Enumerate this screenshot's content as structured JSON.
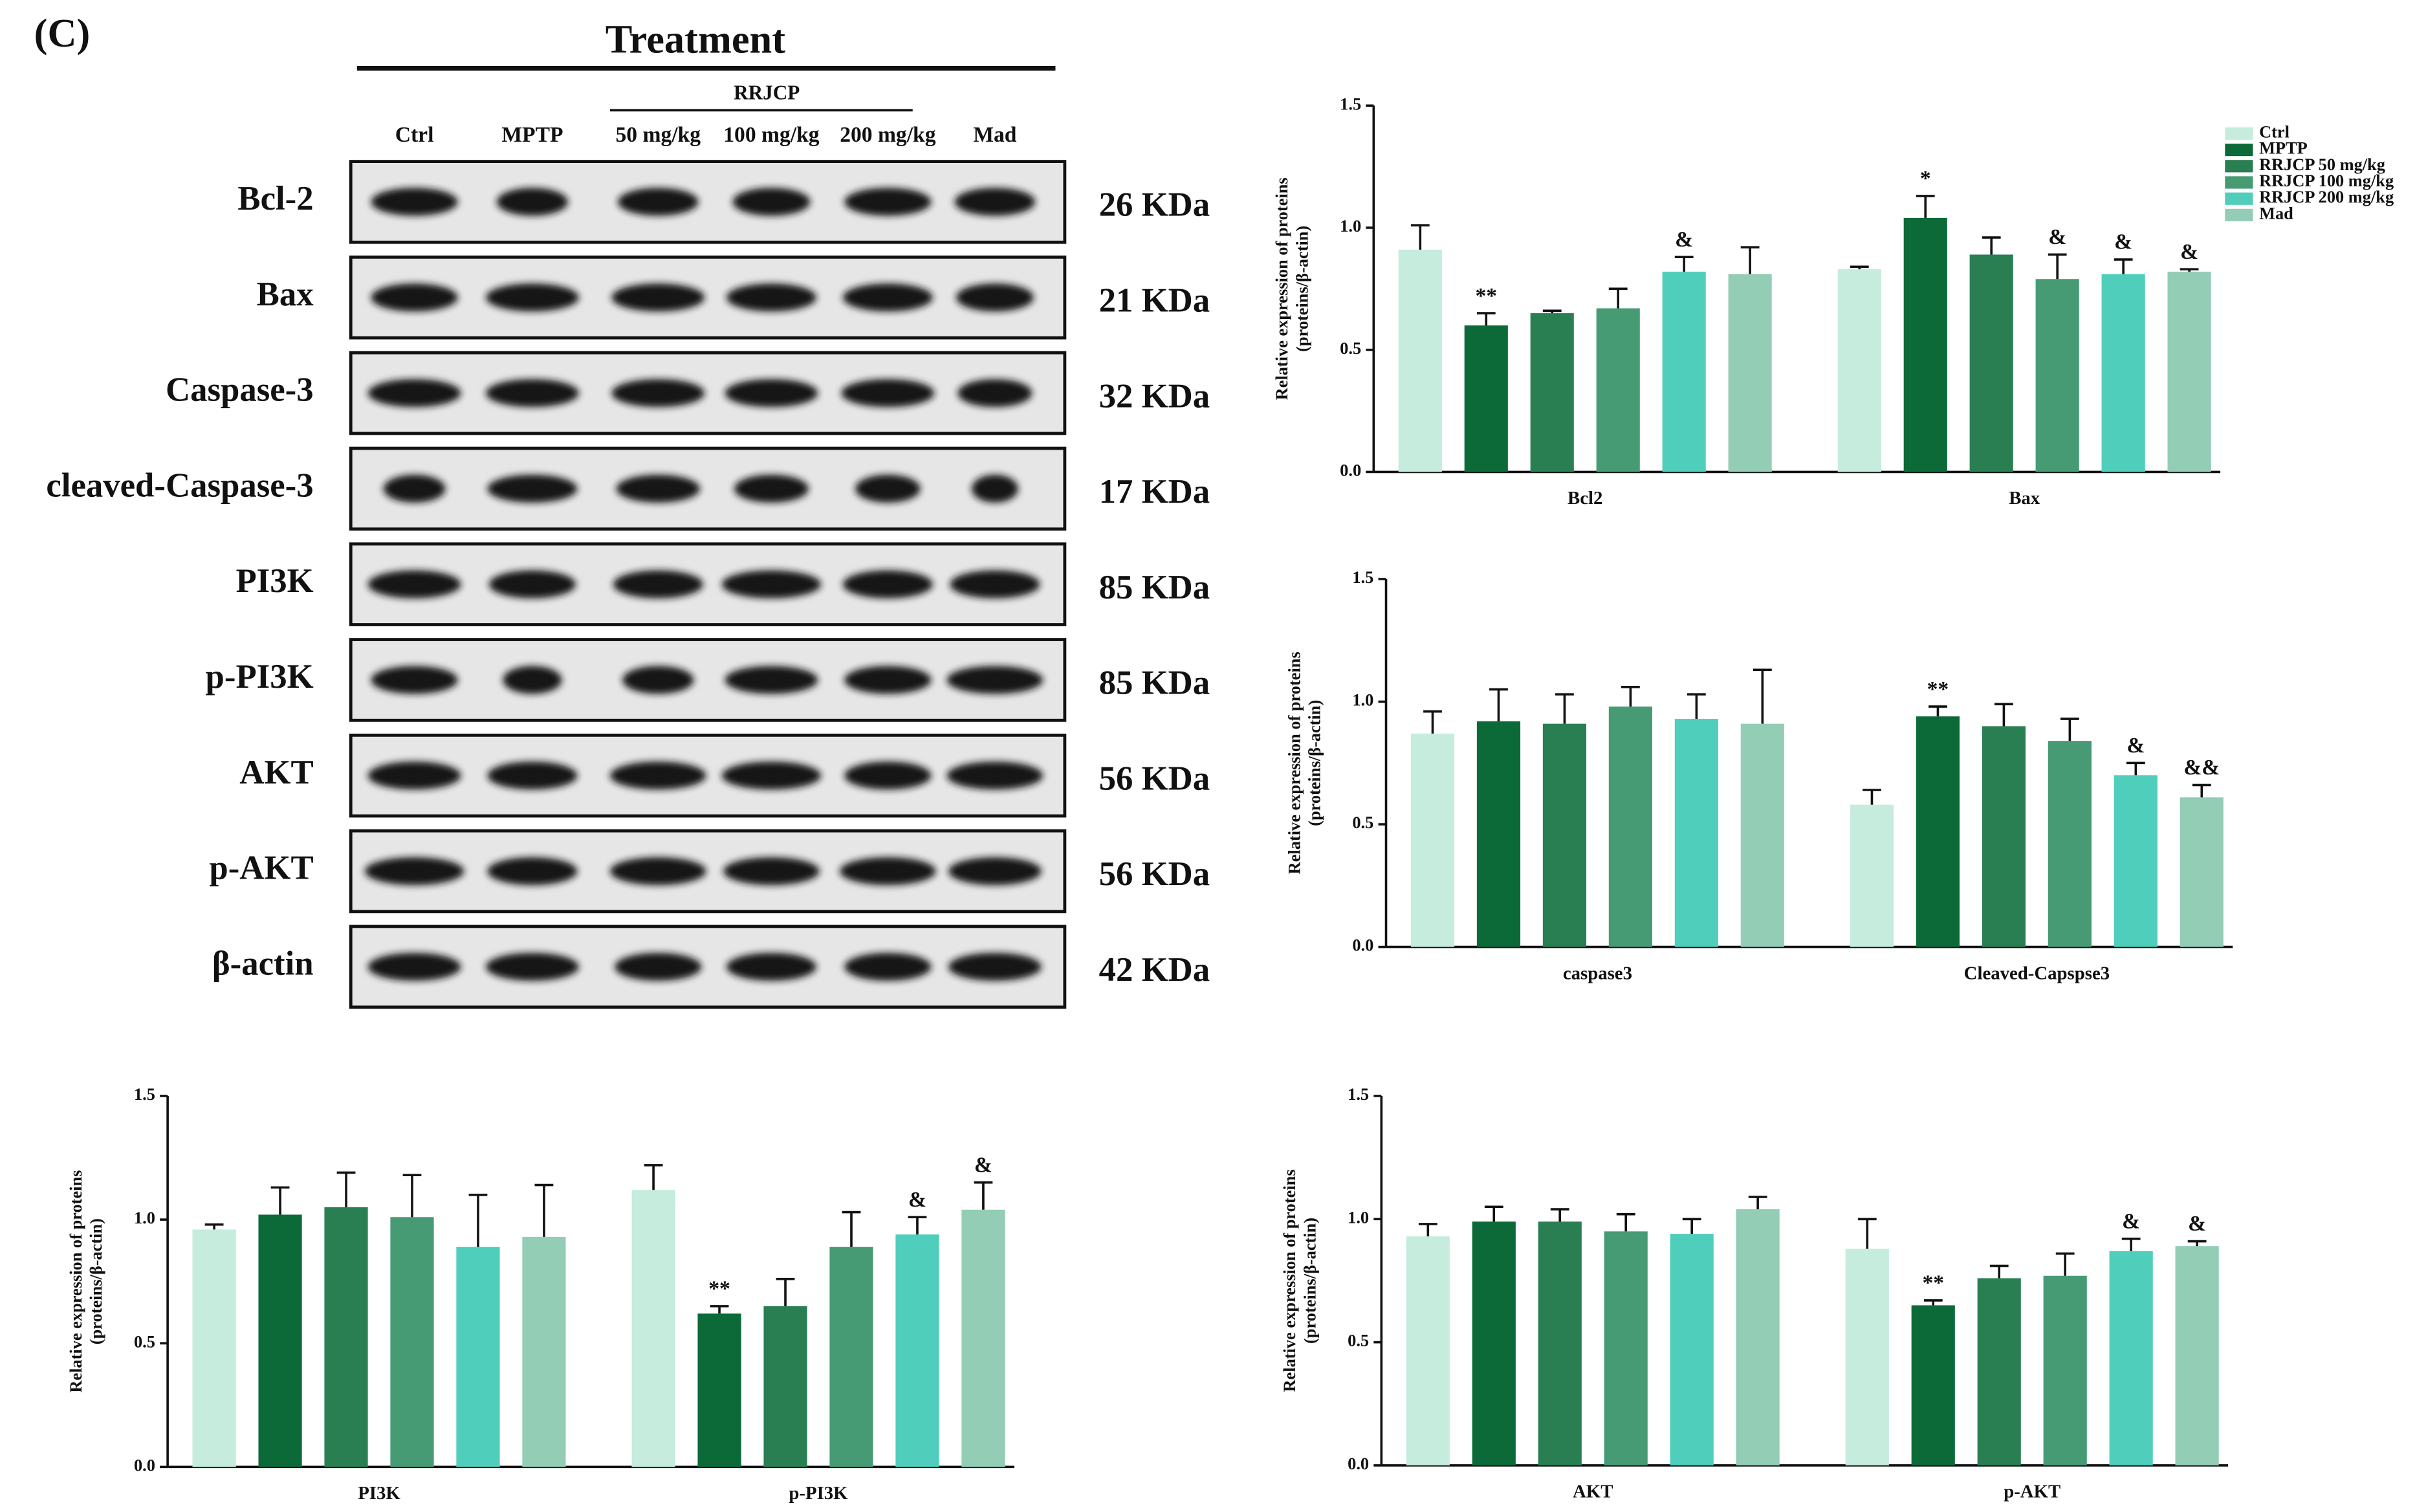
{
  "figure_label": "(C)",
  "blot": {
    "header": "Treatment",
    "group": "RRJCP",
    "lanes": [
      "Ctrl",
      "MPTP",
      "50 mg/kg",
      "100 mg/kg",
      "200 mg/kg",
      "Mad"
    ],
    "rows": [
      {
        "name": "Bcl-2",
        "size": "26 KDa"
      },
      {
        "name": "Bax",
        "size": "21 KDa"
      },
      {
        "name": "Caspase-3",
        "size": "32 KDa"
      },
      {
        "name": "cleaved-Caspase-3",
        "size": "17 KDa"
      },
      {
        "name": "PI3K",
        "size": "85 KDa"
      },
      {
        "name": "p-PI3K",
        "size": "85 KDa"
      },
      {
        "name": "AKT",
        "size": "56 KDa"
      },
      {
        "name": "p-AKT",
        "size": "56 KDa"
      },
      {
        "name": "β-actin",
        "size": "42 KDa"
      }
    ]
  },
  "chart_data": [
    {
      "type": "bar",
      "y_label": [
        "Relative expression of proteins",
        "(proteins/β-actin)"
      ],
      "categories": [
        "Bcl2",
        "Bax"
      ],
      "ylim": [
        0,
        1.5
      ],
      "yticks": [
        {
          "value": 0,
          "label": "0.0"
        },
        0.5,
        {
          "value": 1,
          "label": "1.0"
        },
        1.5
      ],
      "legend": "top-right",
      "series": [
        {
          "name": "Ctrl",
          "color": "#c5ecdd",
          "values": [
            0.91,
            0.83
          ],
          "errors": [
            0.1,
            0.01
          ],
          "annotations": [
            null,
            null
          ]
        },
        {
          "name": "MPTP",
          "color": "#0b6a38",
          "values": [
            0.6,
            1.04
          ],
          "errors": [
            0.05,
            0.09
          ],
          "annotations": [
            "**",
            "*"
          ]
        },
        {
          "name": "RRJCP 50 mg/kg",
          "color": "#2a7f52",
          "values": [
            0.65,
            0.89
          ],
          "errors": [
            0.01,
            0.07
          ],
          "annotations": [
            null,
            null
          ]
        },
        {
          "name": "RRJCP 100 mg/kg",
          "color": "#469b74",
          "values": [
            0.67,
            0.79
          ],
          "errors": [
            0.08,
            0.1
          ],
          "annotations": [
            null,
            "&"
          ]
        },
        {
          "name": "RRJCP 200 mg/kg",
          "color": "#4fcfbb",
          "values": [
            0.82,
            0.81
          ],
          "errors": [
            0.06,
            0.06
          ],
          "annotations": [
            "&",
            "&"
          ]
        },
        {
          "name": "Mad",
          "color": "#93cdb6",
          "values": [
            0.81,
            0.82
          ],
          "errors": [
            0.11,
            0.01
          ],
          "annotations": [
            null,
            "&"
          ]
        }
      ]
    },
    {
      "type": "bar",
      "y_label": [
        "Relative expression of proteins",
        "(proteins/β-actin)"
      ],
      "categories": [
        "caspase3",
        "Cleaved-Capspse3"
      ],
      "ylim": [
        0,
        1.5
      ],
      "yticks": [
        {
          "value": 0,
          "label": "0.0"
        },
        0.5,
        {
          "value": 1,
          "label": "1.0"
        },
        1.5
      ],
      "series": [
        {
          "color": "#c5ecdd",
          "values": [
            0.87,
            0.58
          ],
          "errors": [
            0.09,
            0.06
          ],
          "annotations": [
            null,
            null
          ]
        },
        {
          "color": "#0b6a38",
          "values": [
            0.92,
            0.94
          ],
          "errors": [
            0.13,
            0.04
          ],
          "annotations": [
            null,
            "**"
          ]
        },
        {
          "color": "#2a7f52",
          "values": [
            0.91,
            0.9
          ],
          "errors": [
            0.12,
            0.09
          ],
          "annotations": [
            null,
            null
          ]
        },
        {
          "color": "#469b74",
          "values": [
            0.98,
            0.84
          ],
          "errors": [
            0.08,
            0.09
          ],
          "annotations": [
            null,
            null
          ]
        },
        {
          "color": "#4fcfbb",
          "values": [
            0.93,
            0.7
          ],
          "errors": [
            0.1,
            0.05
          ],
          "annotations": [
            null,
            "&"
          ]
        },
        {
          "color": "#93cdb6",
          "values": [
            0.91,
            0.61
          ],
          "errors": [
            0.22,
            0.05
          ],
          "annotations": [
            null,
            "&&"
          ]
        }
      ]
    },
    {
      "type": "bar",
      "y_label": [
        "Relative expression of proteins",
        "(proteins/β-actin)"
      ],
      "categories": [
        "PI3K",
        "p-PI3K"
      ],
      "ylim": [
        0,
        1.5
      ],
      "yticks": [
        {
          "value": 0,
          "label": "0.0"
        },
        0.5,
        {
          "value": 1,
          "label": "1.0"
        },
        1.5
      ],
      "series": [
        {
          "color": "#c5ecdd",
          "values": [
            0.96,
            1.12
          ],
          "errors": [
            0.02,
            0.1
          ],
          "annotations": [
            null,
            null
          ]
        },
        {
          "color": "#0b6a38",
          "values": [
            1.02,
            0.62
          ],
          "errors": [
            0.11,
            0.03
          ],
          "annotations": [
            null,
            "**"
          ]
        },
        {
          "color": "#2a7f52",
          "values": [
            1.05,
            0.65
          ],
          "errors": [
            0.14,
            0.11
          ],
          "annotations": [
            null,
            null
          ]
        },
        {
          "color": "#469b74",
          "values": [
            1.01,
            0.89
          ],
          "errors": [
            0.17,
            0.14
          ],
          "annotations": [
            null,
            null
          ]
        },
        {
          "color": "#4fcfbb",
          "values": [
            0.89,
            0.94
          ],
          "errors": [
            0.21,
            0.07
          ],
          "annotations": [
            null,
            "&"
          ]
        },
        {
          "color": "#93cdb6",
          "values": [
            0.93,
            1.04
          ],
          "errors": [
            0.21,
            0.11
          ],
          "annotations": [
            null,
            "&"
          ]
        }
      ]
    },
    {
      "type": "bar",
      "y_label": [
        "Relative expression of proteins",
        "(proteins/β-actin)"
      ],
      "categories": [
        "AKT",
        "p-AKT"
      ],
      "ylim": [
        0,
        1.5
      ],
      "yticks": [
        {
          "value": 0,
          "label": "0.0"
        },
        0.5,
        {
          "value": 1,
          "label": "1.0"
        },
        1.5
      ],
      "series": [
        {
          "color": "#c5ecdd",
          "values": [
            0.93,
            0.88
          ],
          "errors": [
            0.05,
            0.12
          ],
          "annotations": [
            null,
            null
          ]
        },
        {
          "color": "#0b6a38",
          "values": [
            0.99,
            0.65
          ],
          "errors": [
            0.06,
            0.02
          ],
          "annotations": [
            null,
            "**"
          ]
        },
        {
          "color": "#2a7f52",
          "values": [
            0.99,
            0.76
          ],
          "errors": [
            0.05,
            0.05
          ],
          "annotations": [
            null,
            null
          ]
        },
        {
          "color": "#469b74",
          "values": [
            0.95,
            0.77
          ],
          "errors": [
            0.07,
            0.09
          ],
          "annotations": [
            null,
            null
          ]
        },
        {
          "color": "#4fcfbb",
          "values": [
            0.94,
            0.87
          ],
          "errors": [
            0.06,
            0.05
          ],
          "annotations": [
            null,
            "&"
          ]
        },
        {
          "color": "#93cdb6",
          "values": [
            1.04,
            0.89
          ],
          "errors": [
            0.05,
            0.02
          ],
          "annotations": [
            null,
            "&"
          ]
        }
      ]
    }
  ]
}
